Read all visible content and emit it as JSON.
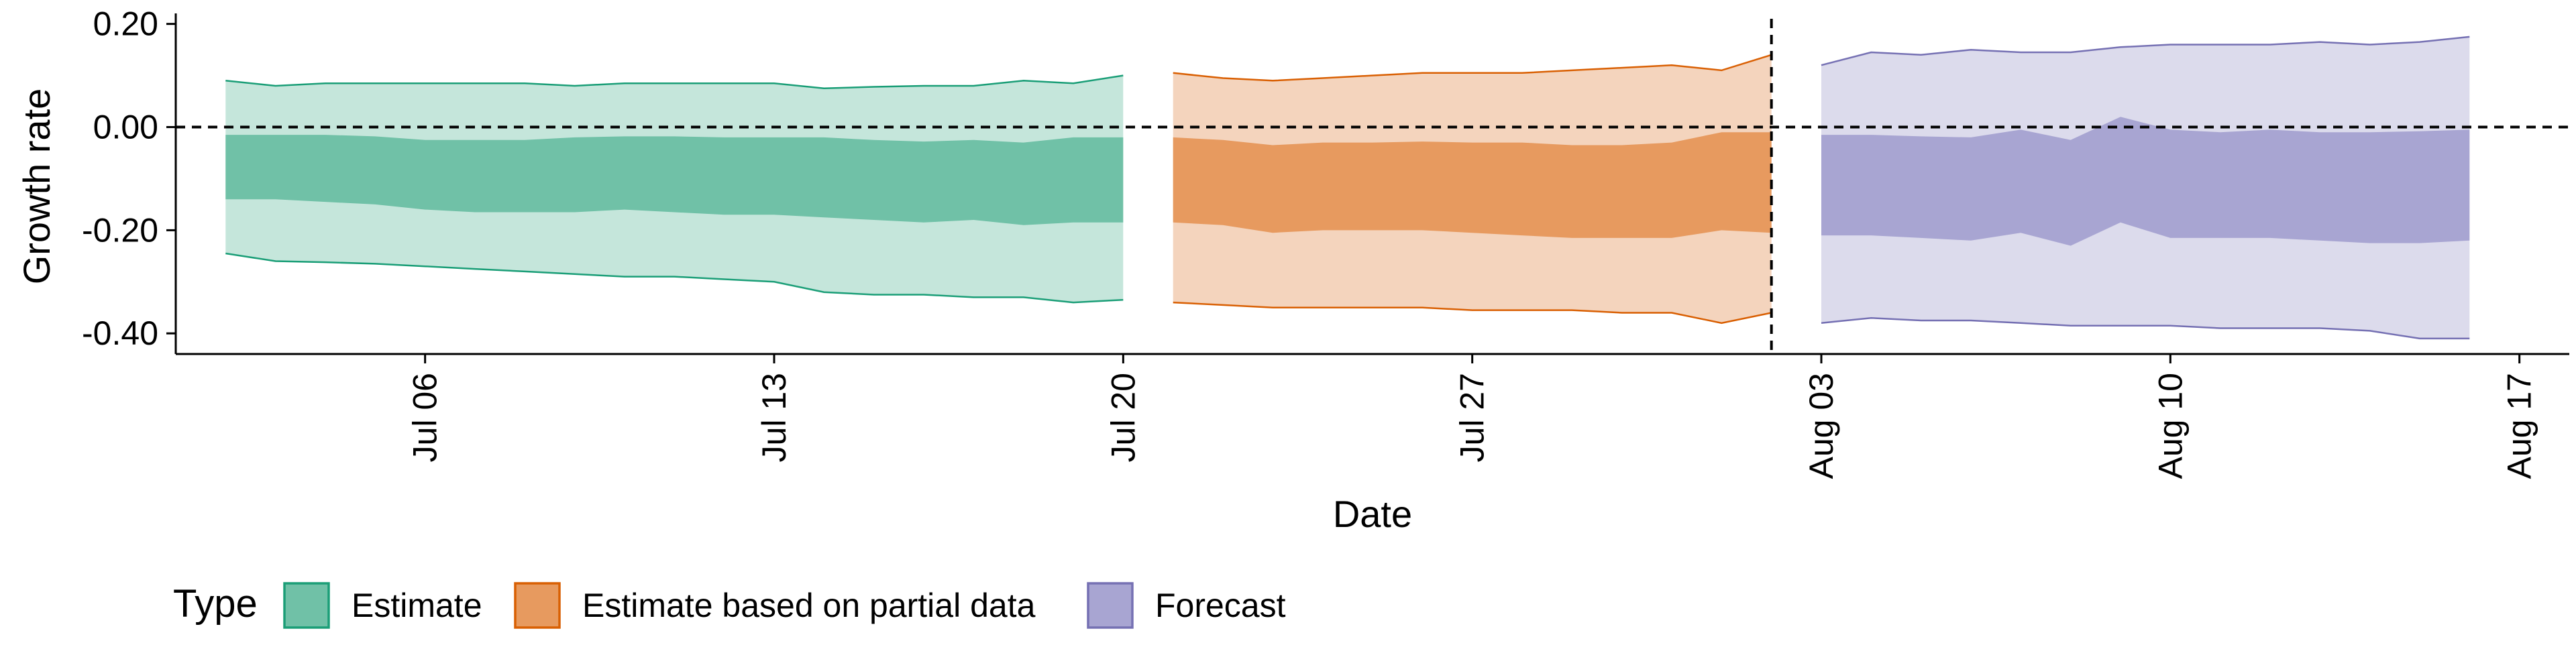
{
  "chart_data": {
    "type": "area",
    "xlabel": "Date",
    "ylabel": "Growth rate",
    "x_ticks": [
      "Jul 06",
      "Jul 13",
      "Jul 20",
      "Jul 27",
      "Aug 03",
      "Aug 10",
      "Aug 17"
    ],
    "x_tick_dates": [
      "2020-07-06",
      "2020-07-13",
      "2020-07-20",
      "2020-07-27",
      "2020-08-03",
      "2020-08-10",
      "2020-08-17"
    ],
    "y_ticks": [
      "0.20",
      "0.00",
      "-0.20",
      "-0.40"
    ],
    "y_tick_values": [
      0.2,
      0.0,
      -0.2,
      -0.4
    ],
    "xlim": [
      "2020-07-01",
      "2020-08-18"
    ],
    "ylim": [
      -0.44,
      0.21
    ],
    "grid": false,
    "reference_lines": [
      {
        "axis": "y",
        "value": 0.0,
        "style": "dashed"
      },
      {
        "axis": "x",
        "value": "2020-08-02",
        "style": "dashed"
      }
    ],
    "legend": {
      "title": "Type",
      "position": "bottom",
      "entries": [
        "Estimate",
        "Estimate based on partial data",
        "Forecast"
      ]
    },
    "series": [
      {
        "name": "Estimate",
        "fill_inner": "#70c1a7",
        "fill_outer": "#c5e6db",
        "stroke": "#1a9e77",
        "x": [
          "2020-07-02",
          "2020-07-03",
          "2020-07-04",
          "2020-07-05",
          "2020-07-06",
          "2020-07-07",
          "2020-07-08",
          "2020-07-09",
          "2020-07-10",
          "2020-07-11",
          "2020-07-12",
          "2020-07-13",
          "2020-07-14",
          "2020-07-15",
          "2020-07-16",
          "2020-07-17",
          "2020-07-18",
          "2020-07-19",
          "2020-07-20"
        ],
        "outer_upper": [
          0.09,
          0.08,
          0.085,
          0.085,
          0.085,
          0.085,
          0.085,
          0.08,
          0.085,
          0.085,
          0.085,
          0.085,
          0.075,
          0.078,
          0.08,
          0.08,
          0.09,
          0.085,
          0.1
        ],
        "inner_upper": [
          -0.015,
          -0.015,
          -0.015,
          -0.018,
          -0.025,
          -0.025,
          -0.025,
          -0.02,
          -0.018,
          -0.018,
          -0.02,
          -0.02,
          -0.02,
          -0.025,
          -0.028,
          -0.025,
          -0.03,
          -0.02,
          -0.02
        ],
        "inner_lower": [
          -0.14,
          -0.14,
          -0.145,
          -0.15,
          -0.16,
          -0.165,
          -0.165,
          -0.165,
          -0.16,
          -0.165,
          -0.17,
          -0.17,
          -0.175,
          -0.18,
          -0.185,
          -0.18,
          -0.19,
          -0.185,
          -0.185
        ],
        "outer_lower": [
          -0.245,
          -0.26,
          -0.262,
          -0.265,
          -0.27,
          -0.275,
          -0.28,
          -0.285,
          -0.29,
          -0.29,
          -0.295,
          -0.3,
          -0.32,
          -0.325,
          -0.325,
          -0.33,
          -0.33,
          -0.34,
          -0.335
        ]
      },
      {
        "name": "Estimate based on partial data",
        "fill_inner": "#e79a5f",
        "fill_outer": "#f4d4bd",
        "stroke": "#d95f02",
        "x": [
          "2020-07-21",
          "2020-07-22",
          "2020-07-23",
          "2020-07-24",
          "2020-07-25",
          "2020-07-26",
          "2020-07-27",
          "2020-07-28",
          "2020-07-29",
          "2020-07-30",
          "2020-07-31",
          "2020-08-01",
          "2020-08-02"
        ],
        "outer_upper": [
          0.105,
          0.095,
          0.09,
          0.095,
          0.1,
          0.105,
          0.105,
          0.105,
          0.11,
          0.115,
          0.12,
          0.11,
          0.14
        ],
        "inner_upper": [
          -0.02,
          -0.025,
          -0.035,
          -0.03,
          -0.03,
          -0.028,
          -0.03,
          -0.03,
          -0.035,
          -0.035,
          -0.03,
          -0.01,
          -0.01
        ],
        "inner_lower": [
          -0.185,
          -0.19,
          -0.205,
          -0.2,
          -0.2,
          -0.2,
          -0.205,
          -0.21,
          -0.215,
          -0.215,
          -0.215,
          -0.2,
          -0.205
        ],
        "outer_lower": [
          -0.34,
          -0.345,
          -0.35,
          -0.35,
          -0.35,
          -0.35,
          -0.355,
          -0.355,
          -0.355,
          -0.36,
          -0.36,
          -0.38,
          -0.36
        ]
      },
      {
        "name": "Forecast",
        "fill_inner": "#a8a5d2",
        "fill_outer": "#dcdbec",
        "stroke": "#7570b3",
        "x": [
          "2020-08-03",
          "2020-08-04",
          "2020-08-05",
          "2020-08-06",
          "2020-08-07",
          "2020-08-08",
          "2020-08-09",
          "2020-08-10",
          "2020-08-11",
          "2020-08-12",
          "2020-08-13",
          "2020-08-14",
          "2020-08-15",
          "2020-08-16"
        ],
        "outer_upper": [
          0.12,
          0.145,
          0.14,
          0.15,
          0.145,
          0.145,
          0.155,
          0.16,
          0.16,
          0.16,
          0.165,
          0.16,
          0.165,
          0.175
        ],
        "inner_upper": [
          -0.015,
          -0.015,
          -0.018,
          -0.02,
          -0.005,
          -0.025,
          0.02,
          -0.005,
          -0.01,
          -0.005,
          -0.01,
          -0.01,
          -0.008,
          -0.005
        ],
        "inner_lower": [
          -0.21,
          -0.21,
          -0.215,
          -0.22,
          -0.205,
          -0.23,
          -0.185,
          -0.215,
          -0.215,
          -0.215,
          -0.22,
          -0.225,
          -0.225,
          -0.22
        ],
        "outer_lower": [
          -0.38,
          -0.37,
          -0.375,
          -0.375,
          -0.38,
          -0.385,
          -0.385,
          -0.385,
          -0.39,
          -0.39,
          -0.39,
          -0.395,
          -0.41,
          -0.41
        ]
      }
    ]
  }
}
